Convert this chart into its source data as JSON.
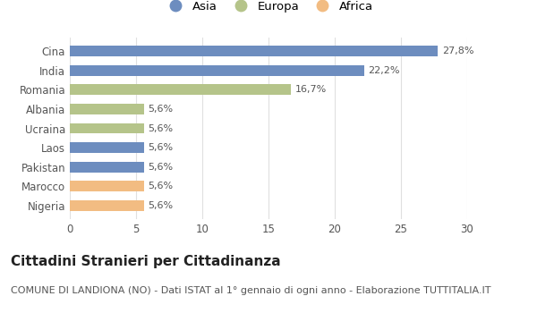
{
  "categories": [
    "Cina",
    "India",
    "Romania",
    "Albania",
    "Ucraina",
    "Laos",
    "Pakistan",
    "Marocco",
    "Nigeria"
  ],
  "values": [
    27.8,
    22.2,
    16.7,
    5.6,
    5.6,
    5.6,
    5.6,
    5.6,
    5.6
  ],
  "labels": [
    "27,8%",
    "22,2%",
    "16,7%",
    "5,6%",
    "5,6%",
    "5,6%",
    "5,6%",
    "5,6%",
    "5,6%"
  ],
  "colors": [
    "#6d8dbf",
    "#6d8dbf",
    "#b5c48a",
    "#b5c48a",
    "#b5c48a",
    "#6d8dbf",
    "#6d8dbf",
    "#f2bc82",
    "#f2bc82"
  ],
  "legend_labels": [
    "Asia",
    "Europa",
    "Africa"
  ],
  "legend_colors": [
    "#6d8dbf",
    "#b5c48a",
    "#f2bc82"
  ],
  "xlim": [
    0,
    30
  ],
  "xticks": [
    0,
    5,
    10,
    15,
    20,
    25,
    30
  ],
  "title": "Cittadini Stranieri per Cittadinanza",
  "subtitle": "COMUNE DI LANDIONA (NO) - Dati ISTAT al 1° gennaio di ogni anno - Elaborazione TUTTITALIA.IT",
  "background_color": "#ffffff",
  "grid_color": "#e0e0e0",
  "bar_height": 0.55,
  "label_fontsize": 8,
  "title_fontsize": 11,
  "subtitle_fontsize": 8,
  "tick_fontsize": 8.5,
  "legend_fontsize": 9.5
}
